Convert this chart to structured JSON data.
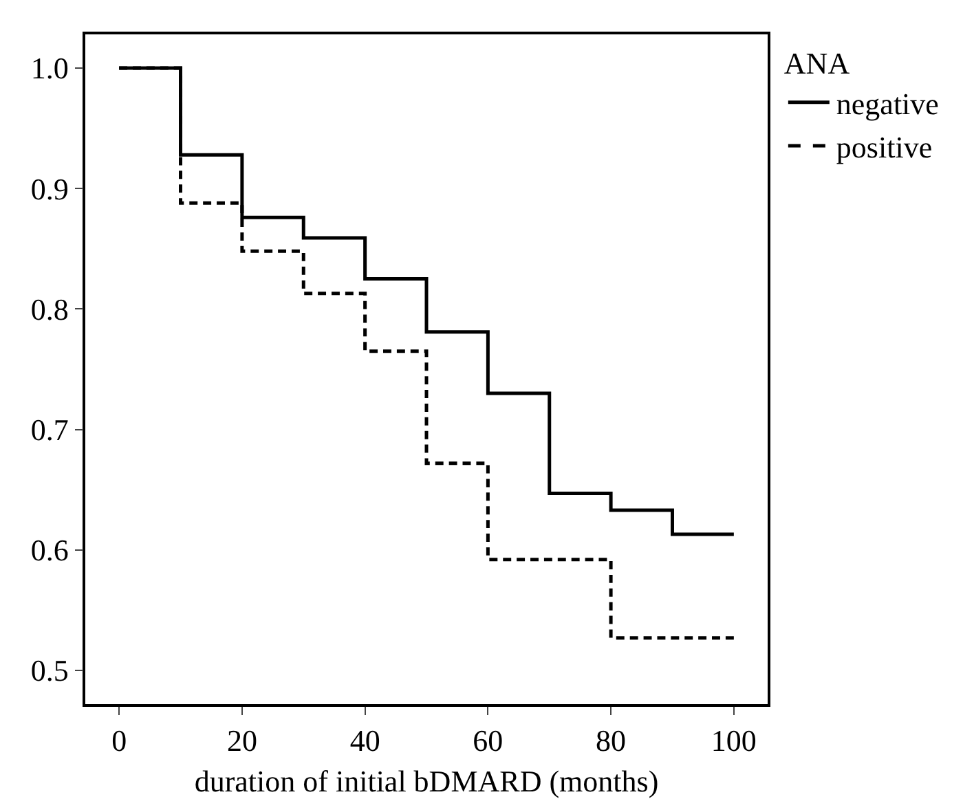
{
  "chart_data": {
    "type": "step",
    "xlabel": "duration of initial bDMARD (months)",
    "legend_title": "ANA",
    "legend": "top right",
    "x": [
      0,
      10,
      20,
      30,
      40,
      50,
      60,
      70,
      80,
      90,
      100
    ],
    "series": [
      {
        "name": "negative",
        "color": "#000000",
        "line_style": "solid",
        "values": [
          1,
          0.928,
          0.876,
          0.859,
          0.825,
          0.781,
          0.73,
          0.647,
          0.633,
          0.613,
          0.613
        ]
      },
      {
        "name": "positive",
        "color": "#000000",
        "line_style": "dashed",
        "values": [
          1,
          0.888,
          0.848,
          0.813,
          0.765,
          0.672,
          0.592,
          0.592,
          0.527,
          0.527,
          0.527
        ]
      }
    ],
    "xlim": [
      -5.5,
      105.5
    ],
    "xticks": [
      0,
      20,
      40,
      60,
      80,
      100
    ],
    "ylim": [
      0.472,
      1.028
    ],
    "yticks": [
      {
        "value": 0.5,
        "label": "0.5"
      },
      {
        "value": 0.6,
        "label": "0.6"
      },
      {
        "value": 0.7,
        "label": "0.7"
      },
      {
        "value": 0.8,
        "label": "0.8"
      },
      {
        "value": 0.9,
        "label": "0.9"
      },
      {
        "value": 1,
        "label": "1.0"
      }
    ],
    "grid": false
  }
}
